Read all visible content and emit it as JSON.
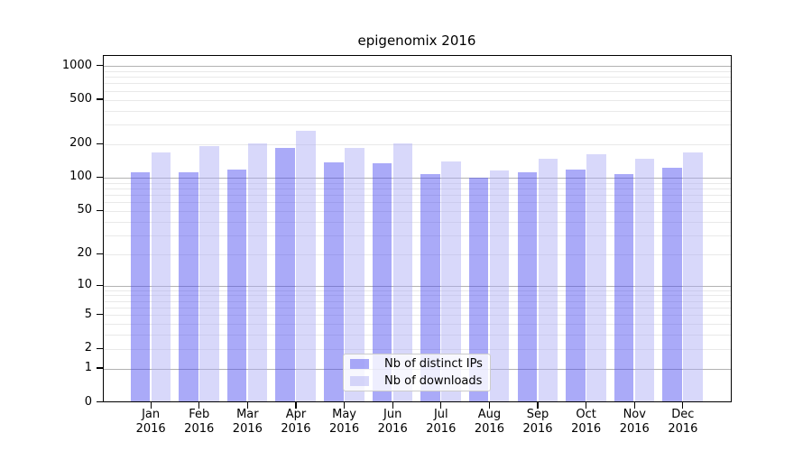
{
  "figure": {
    "title": "epigenomix 2016"
  },
  "colors": {
    "background": "#ffffff",
    "bar_distinct_ips": "rgba(66,66,240,0.45)",
    "bar_downloads": "rgba(168,168,244,0.45)",
    "grid_major": "#b2b2b2",
    "grid_minor": "#e9e9e9",
    "spine": "#000000",
    "legend_border": "#cccccc",
    "text": "#000000"
  },
  "chart_data": {
    "type": "bar",
    "title": "epigenomix 2016",
    "categories": [
      "Jan",
      "Feb",
      "Mar",
      "Apr",
      "May",
      "Jun",
      "Jul",
      "Aug",
      "Sep",
      "Oct",
      "Nov",
      "Dec"
    ],
    "x_year_label": "2016",
    "series": [
      {
        "name": "Nb of distinct IPs",
        "color_key": "bar_distinct_ips",
        "values": [
          111,
          111,
          117,
          182,
          137,
          133,
          106,
          99,
          111,
          117,
          106,
          121
        ]
      },
      {
        "name": "Nb of downloads",
        "color_key": "bar_downloads",
        "values": [
          166,
          192,
          200,
          261,
          183,
          200,
          138,
          116,
          146,
          160,
          146,
          166
        ]
      }
    ],
    "xlabel": "",
    "ylabel": "",
    "yscale": "log1p",
    "ylim": [
      0,
      1240
    ],
    "yticks": [
      0,
      1,
      2,
      5,
      10,
      20,
      50,
      100,
      200,
      500,
      1000
    ],
    "grid": "both",
    "grid_major_values": [
      1,
      10,
      100,
      1000
    ],
    "grid_minor_multipliers": [
      2,
      3,
      4,
      5,
      6,
      7,
      8,
      9
    ],
    "legend_position": "lower center",
    "legend_entries": [
      "Nb of distinct IPs",
      "Nb of downloads"
    ]
  }
}
